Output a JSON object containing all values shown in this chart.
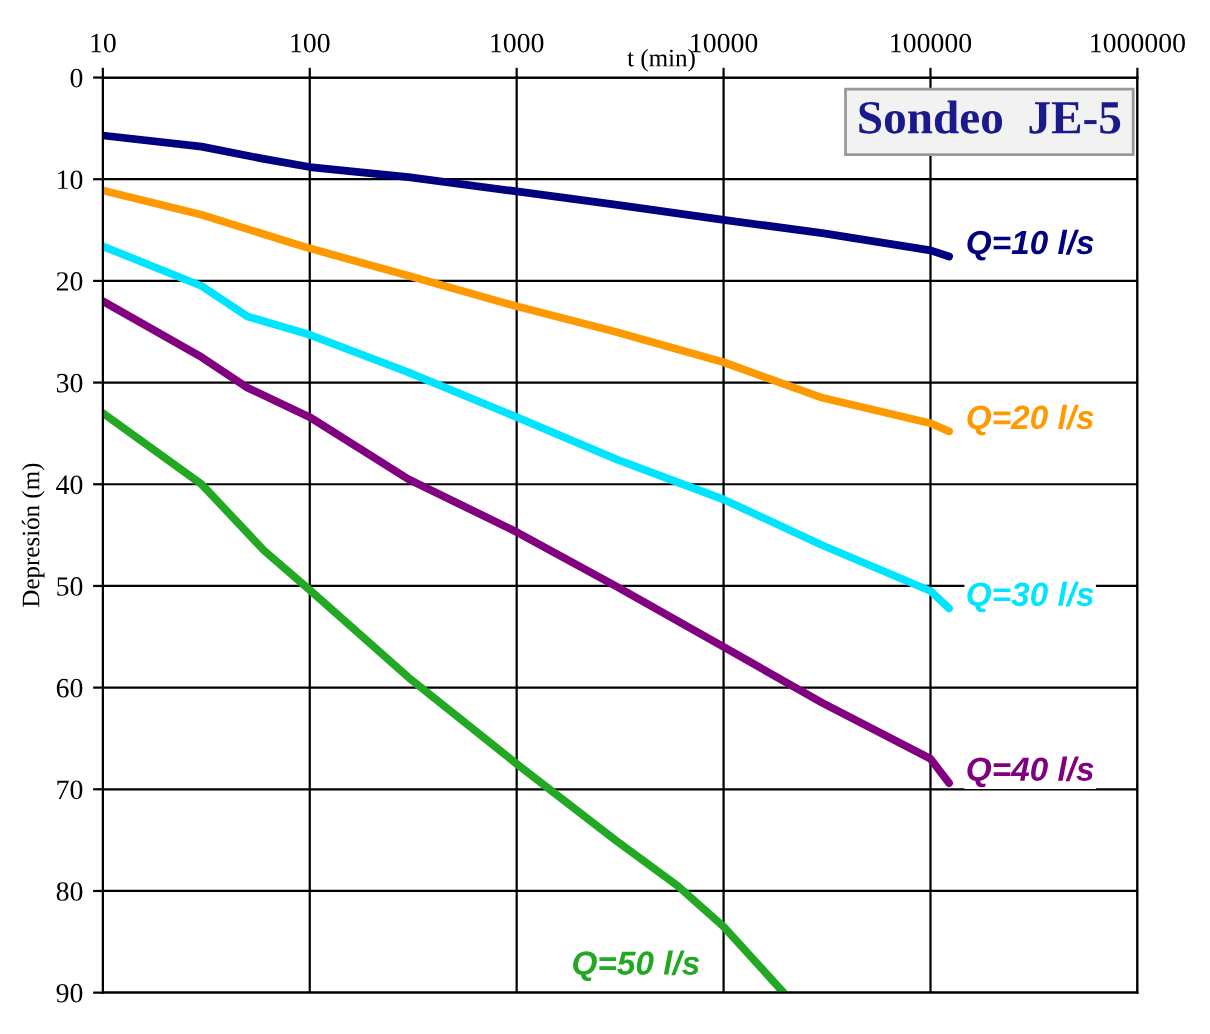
{
  "chart_data": {
    "type": "line",
    "title": "Sondeo  JE-5",
    "xlabel": "t (min)",
    "ylabel": "Depresión (m)",
    "log": "x",
    "xlim": [
      10,
      1000000
    ],
    "xticks": [
      10,
      100,
      1000,
      10000,
      100000,
      1000000
    ],
    "ylim": [
      90,
      0
    ],
    "yticks": [
      0,
      10,
      20,
      30,
      40,
      50,
      60,
      70,
      80,
      90
    ],
    "grid": true,
    "legend": false,
    "marker": "none",
    "line_style": "solid",
    "series": [
      {
        "name": "Q=10 l/s",
        "color": "#000080",
        "x": [
          10,
          30,
          60,
          100,
          300,
          1000,
          3000,
          10000,
          30000,
          100000,
          123000
        ],
        "values": [
          5.7,
          6.8,
          8,
          8.8,
          9.8,
          11.2,
          12.5,
          14,
          15.3,
          17,
          17.6
        ]
      },
      {
        "name": "Q=20 l/s",
        "color": "#ff9900",
        "x": [
          10,
          30,
          80,
          100,
          300,
          1000,
          3000,
          10000,
          30000,
          100000,
          123000
        ],
        "values": [
          11.1,
          13.5,
          16.2,
          16.8,
          19.5,
          22.5,
          25,
          28,
          31.5,
          34,
          34.8
        ]
      },
      {
        "name": "Q=30 l/s",
        "color": "#00e5ff",
        "x": [
          10,
          30,
          50,
          100,
          300,
          1000,
          3000,
          10000,
          30000,
          100000,
          123000
        ],
        "values": [
          16.6,
          20.5,
          23.5,
          25.3,
          29,
          33.4,
          37.5,
          41.5,
          46,
          50.5,
          52.2
        ]
      },
      {
        "name": "Q=40 l/s",
        "color": "#800080",
        "x": [
          10,
          30,
          50,
          100,
          300,
          1000,
          3000,
          10000,
          30000,
          100000,
          123000
        ],
        "values": [
          22,
          27.5,
          30.5,
          33.4,
          39.5,
          44.7,
          50,
          56,
          61.5,
          67,
          69.4
        ]
      },
      {
        "name": "Q=50 l/s",
        "color": "#22a822",
        "x": [
          10,
          30,
          60,
          100,
          300,
          1000,
          3000,
          6000,
          10000,
          19500
        ],
        "values": [
          33,
          40,
          46.5,
          50.4,
          59,
          67.5,
          75,
          79.5,
          83.5,
          90
        ]
      }
    ]
  }
}
